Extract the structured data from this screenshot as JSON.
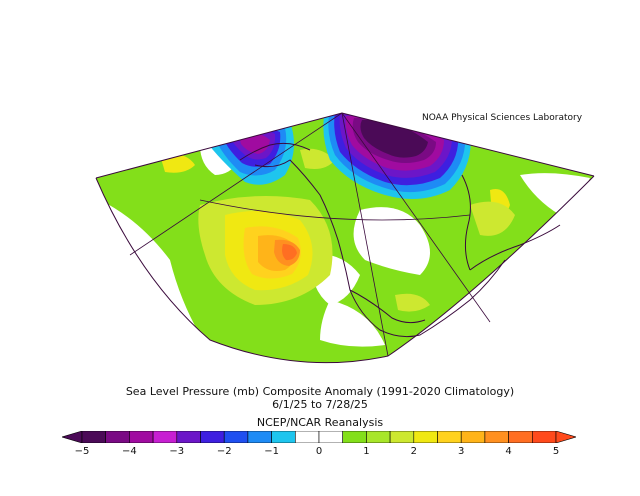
{
  "credit": "NOAA Physical Sciences Laboratory",
  "title_line1": "Sea Level Pressure (mb) Composite Anomaly (1991-2020 Climatology)",
  "title_line2": "6/1/25  to 7/28/25",
  "title_line3": "NCEP/NCAR Reanalysis",
  "colorbar": {
    "min": -5,
    "max": 5,
    "step": 0.5,
    "tick_labels": [
      "−5",
      "−4",
      "−3",
      "−2",
      "−1",
      "0",
      "1",
      "2",
      "3",
      "4",
      "5"
    ],
    "colors": [
      "#4b0a57",
      "#7a0a84",
      "#a00ba0",
      "#c71fd2",
      "#6c16c8",
      "#3e1fe0",
      "#1f4ff0",
      "#1e8bf5",
      "#1ec5ee",
      "#ffffff",
      "#ffffff",
      "#83df1a",
      "#a8e62a",
      "#cde830",
      "#f0e812",
      "#ffd21e",
      "#ffb419",
      "#ff9020",
      "#ff6e22",
      "#ff4a1c"
    ]
  },
  "map": {
    "region": "Northeast Pacific / North America",
    "feature_colors": {
      "coastline": "#3a0a3c",
      "background_field": "#83df1a"
    }
  }
}
